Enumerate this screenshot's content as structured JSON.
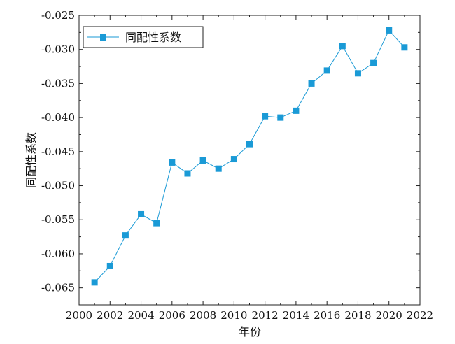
{
  "chart_data": {
    "type": "line",
    "title": "",
    "xlabel": "年份",
    "ylabel": "同配性系数",
    "xlim": [
      2000,
      2022
    ],
    "ylim": [
      -0.0675,
      -0.025
    ],
    "x_ticks": [
      2000,
      2002,
      2004,
      2006,
      2008,
      2010,
      2012,
      2014,
      2016,
      2018,
      2020,
      2022
    ],
    "x_tick_labels": [
      "2000",
      "2002",
      "2004",
      "2006",
      "2008",
      "2010",
      "2012",
      "2014",
      "2016",
      "2018",
      "2020",
      "2022"
    ],
    "y_ticks": [
      -0.065,
      -0.06,
      -0.055,
      -0.05,
      -0.045,
      -0.04,
      -0.035,
      -0.03,
      -0.025
    ],
    "y_tick_labels": [
      "-0.065",
      "-0.060",
      "-0.055",
      "-0.050",
      "-0.045",
      "-0.040",
      "-0.035",
      "-0.030",
      "-0.025"
    ],
    "grid": false,
    "legend_position": "top-left",
    "series": [
      {
        "name": "同配性系数",
        "color": "#1a9ad6",
        "marker": "square",
        "x": [
          2001,
          2002,
          2003,
          2004,
          2005,
          2006,
          2007,
          2008,
          2009,
          2010,
          2011,
          2012,
          2013,
          2014,
          2015,
          2016,
          2017,
          2018,
          2019,
          2020,
          2021
        ],
        "values": [
          -0.0642,
          -0.0618,
          -0.0573,
          -0.0542,
          -0.0555,
          -0.0466,
          -0.0482,
          -0.0463,
          -0.0475,
          -0.0461,
          -0.0439,
          -0.0398,
          -0.04,
          -0.039,
          -0.035,
          -0.0331,
          -0.0295,
          -0.0335,
          -0.032,
          -0.0272,
          -0.0297
        ]
      }
    ]
  }
}
